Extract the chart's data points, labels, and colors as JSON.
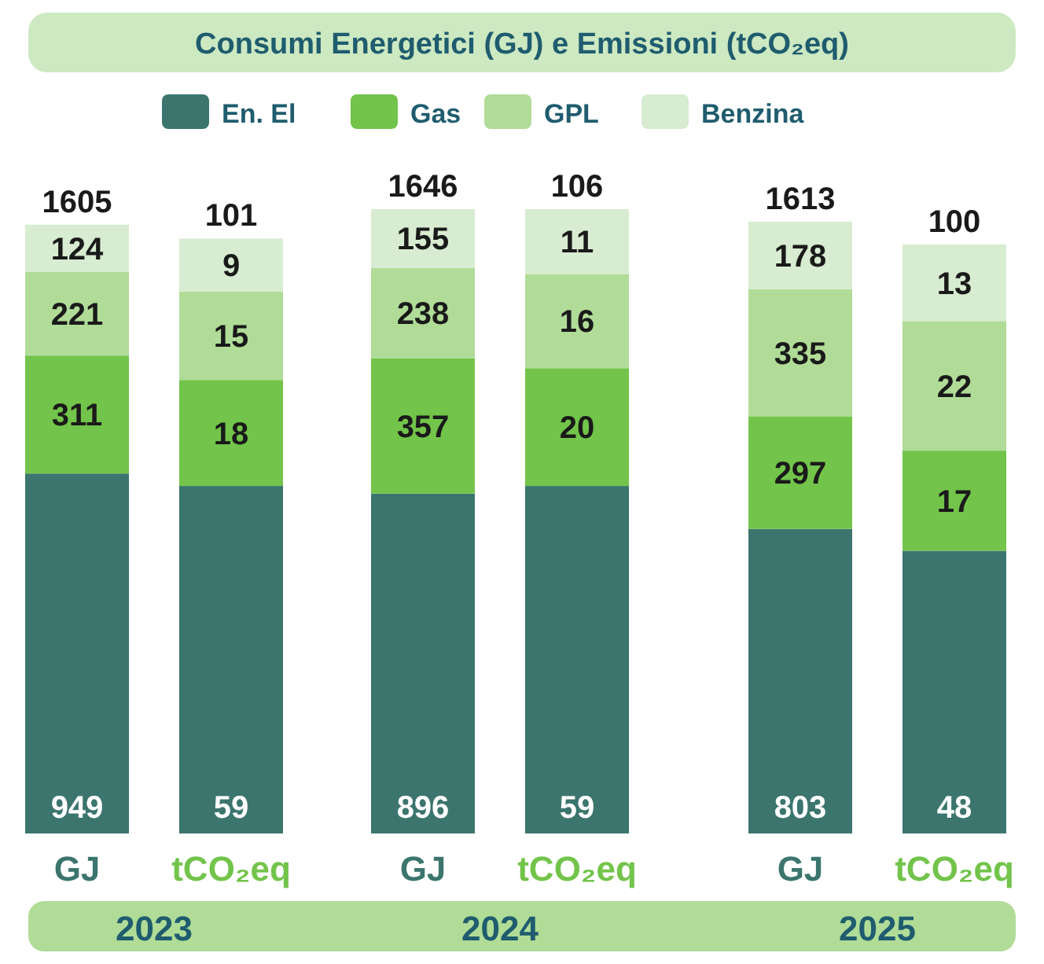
{
  "chart_data": [
    {
      "type": "bar",
      "stacked": true,
      "title": "Consumi Energetici (GJ) e Emissioni (tCO₂eq)",
      "categories": [
        "GJ",
        "GJ",
        "GJ"
      ],
      "series": [
        {
          "name": "En. El",
          "color": "#3b756e",
          "values": [
            949,
            896,
            803
          ]
        },
        {
          "name": "Gas",
          "color": "#72c44a",
          "values": [
            311,
            357,
            297
          ]
        },
        {
          "name": "GPL",
          "color": "#b0dc98",
          "values": [
            221,
            238,
            335
          ]
        },
        {
          "name": "Benzina",
          "color": "#d7ecd0",
          "values": [
            124,
            155,
            178
          ]
        }
      ],
      "totals": [
        "1605",
        "1646",
        "1613"
      ],
      "data_labels": true,
      "legend": "top",
      "grid": false,
      "tick_labels": "x",
      "annotations": [
        "2023",
        "2024",
        "2025"
      ]
    },
    {
      "type": "bar",
      "stacked": true,
      "categories": [
        "tCO₂eq",
        "tCO₂eq",
        "tCO₂eq"
      ],
      "series": [
        {
          "color": "#3b756e",
          "values": [
            59,
            59,
            48
          ]
        },
        {
          "color": "#72c44a",
          "values": [
            18,
            20,
            17
          ]
        },
        {
          "color": "#b0dc98",
          "values": [
            15,
            16,
            22
          ]
        },
        {
          "color": "#d7ecd0",
          "values": [
            9,
            11,
            13
          ]
        }
      ],
      "totals": [
        "101",
        "106",
        "100"
      ],
      "data_labels": true,
      "grid": false,
      "tick_labels": "x"
    }
  ]
}
